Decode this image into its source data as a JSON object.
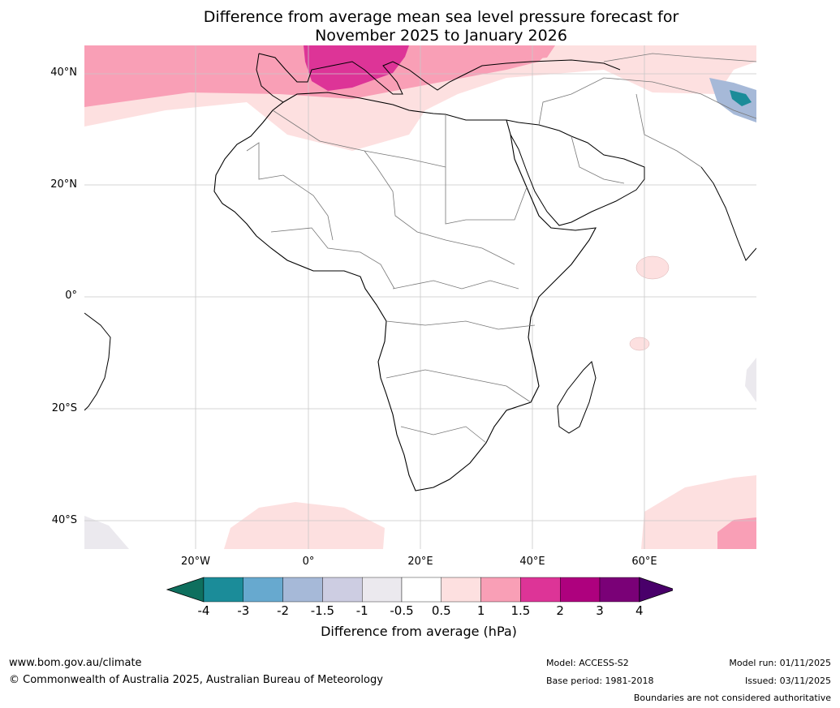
{
  "title": {
    "line1": "Difference from average mean sea level pressure forecast for",
    "line2": "November 2025 to January 2026"
  },
  "map": {
    "lat_labels": [
      "40°N",
      "20°N",
      "0°",
      "20°S",
      "40°S"
    ],
    "lon_labels": [
      "20°W",
      "0°",
      "20°E",
      "40°E",
      "60°E"
    ]
  },
  "colorbar": {
    "ticks": [
      "-4",
      "-3",
      "-2",
      "-1.5",
      "-1",
      "-0.5",
      "0.5",
      "1",
      "1.5",
      "2",
      "3",
      "4"
    ],
    "colors": [
      "#0e6f5e",
      "#1b8c99",
      "#67a9cf",
      "#a6b9d8",
      "#cdcde2",
      "#ebe9ee",
      "#ffffff",
      "#fde0e0",
      "#f99fb6",
      "#dd3497",
      "#ae017e",
      "#7a0177",
      "#49006a"
    ],
    "label": "Difference from average (hPa)"
  },
  "footer": {
    "website": "www.bom.gov.au/climate",
    "copyright": "© Commonwealth of Australia 2025, Australian Bureau of Meteorology",
    "model": "Model: ACCESS-S2",
    "base_period": "Base period: 1981-2018",
    "model_run": "Model run: 01/11/2025",
    "issued": "Issued: 03/11/2025",
    "disclaimer": "Boundaries are not considered authoritative"
  }
}
